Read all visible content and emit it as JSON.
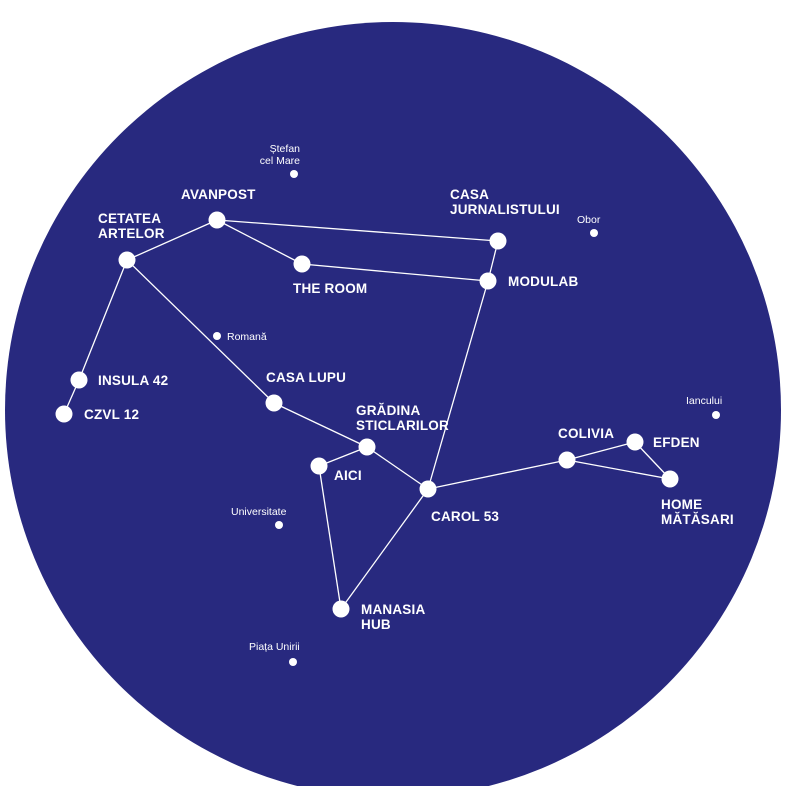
{
  "colors": {
    "sky": "#28297f",
    "star": "#ffffff",
    "line": "#ffffff"
  },
  "venues": [
    {
      "id": "cetatea-artelor",
      "lines": [
        "CETATEA",
        "ARTELOR"
      ]
    },
    {
      "id": "avanpost",
      "lines": [
        "AVANPOST"
      ]
    },
    {
      "id": "the-room",
      "lines": [
        "THE ROOM"
      ]
    },
    {
      "id": "casa-jurnalistului",
      "lines": [
        "CASA",
        "JURNALISTULUI"
      ]
    },
    {
      "id": "modulab",
      "lines": [
        "MODULAB"
      ]
    },
    {
      "id": "insula-42",
      "lines": [
        "INSULA 42"
      ]
    },
    {
      "id": "czvl-12",
      "lines": [
        "CZVL 12"
      ]
    },
    {
      "id": "casa-lupu",
      "lines": [
        "CASA LUPU"
      ]
    },
    {
      "id": "gradina-sticlarilor",
      "lines": [
        "GRĂDINA",
        "STICLARILOR"
      ]
    },
    {
      "id": "aici",
      "lines": [
        "AICI"
      ]
    },
    {
      "id": "carol-53",
      "lines": [
        "CAROL 53"
      ]
    },
    {
      "id": "colivia",
      "lines": [
        "COLIVIA"
      ]
    },
    {
      "id": "efden",
      "lines": [
        "EFDEN"
      ]
    },
    {
      "id": "home-matasari",
      "lines": [
        "HOME",
        "MĂTĂSARI"
      ]
    },
    {
      "id": "manasia-hub",
      "lines": [
        "MANASIA",
        "HUB"
      ]
    }
  ],
  "stations": [
    {
      "id": "stefan-cel-mare",
      "lines": [
        "Ștefan",
        "cel Mare"
      ]
    },
    {
      "id": "obor",
      "lines": [
        "Obor"
      ]
    },
    {
      "id": "romana",
      "lines": [
        "Romană"
      ]
    },
    {
      "id": "iancului",
      "lines": [
        "Iancului"
      ]
    },
    {
      "id": "universitate",
      "lines": [
        "Universitate"
      ]
    },
    {
      "id": "piata-unirii",
      "lines": [
        "Piața Unirii"
      ]
    }
  ],
  "links": [
    [
      "cetatea-artelor",
      "avanpost"
    ],
    [
      "avanpost",
      "casa-jurnalistului"
    ],
    [
      "avanpost",
      "the-room"
    ],
    [
      "the-room",
      "modulab"
    ],
    [
      "casa-jurnalistului",
      "modulab"
    ],
    [
      "modulab",
      "carol-53"
    ],
    [
      "cetatea-artelor",
      "insula-42"
    ],
    [
      "insula-42",
      "czvl-12"
    ],
    [
      "cetatea-artelor",
      "casa-lupu"
    ],
    [
      "casa-lupu",
      "gradina-sticlarilor"
    ],
    [
      "gradina-sticlarilor",
      "carol-53"
    ],
    [
      "gradina-sticlarilor",
      "aici"
    ],
    [
      "aici",
      "manasia-hub"
    ],
    [
      "manasia-hub",
      "carol-53"
    ],
    [
      "carol-53",
      "colivia"
    ],
    [
      "colivia",
      "efden"
    ],
    [
      "efden",
      "home-matasari"
    ],
    [
      "colivia",
      "home-matasari"
    ]
  ]
}
